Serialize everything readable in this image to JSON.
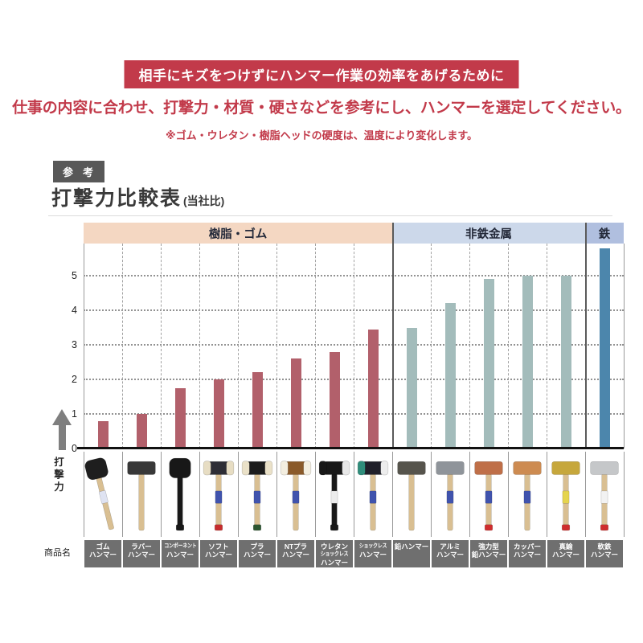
{
  "banner": {
    "text": "相手にキズをつけずにハンマー作業の効率をあげるために",
    "bg": "#c23a4a"
  },
  "intro": {
    "main": "仕事の内容に合わせ、打撃力・材質・硬さなどを参考にし、ハンマーを選定してください。",
    "note": "※ゴム・ウレタン・樹脂ヘッドの硬度は、温度により変化します。"
  },
  "reference_badge": "参考",
  "title": {
    "main": "打撃力比較表",
    "suffix": "(当社比)"
  },
  "axis": {
    "y_label": "打撃力",
    "row_label": "商品名",
    "y_ticks": [
      "0",
      "1",
      "2",
      "3",
      "4",
      "5"
    ]
  },
  "chart_data": {
    "type": "bar",
    "title": "打撃力比較表(当社比)",
    "xlabel": "",
    "ylabel": "打撃力",
    "ylim": [
      0,
      5.93
    ],
    "yticks": [
      0,
      1,
      2,
      3,
      4,
      5
    ],
    "grid": true,
    "legend_position": "none",
    "groups": [
      {
        "label": "樹脂・ゴム",
        "band_color": "#f4d7c2",
        "bar_color": "#b2606b",
        "first_col": 0,
        "last_col": 7
      },
      {
        "label": "非鉄金属",
        "band_color": "#ccd8ea",
        "bar_color": "#a3bcbb",
        "first_col": 8,
        "last_col": 12
      },
      {
        "label": "鉄",
        "band_color": "#b0bfdf",
        "bar_color": "#4c86ac",
        "first_col": 13,
        "last_col": 13
      }
    ],
    "categories": [
      "ゴムハンマー",
      "ラバーハンマー",
      "コンポーネントハンマー",
      "ソフトハンマー",
      "プラハンマー",
      "NTプラハンマー",
      "ウレタンショックレスハンマー",
      "ショックレスハンマー",
      "鉛ハンマー",
      "アルミハンマー",
      "強力型鉛ハンマー",
      "カッパーハンマー",
      "真鍮ハンマー",
      "軟鉄ハンマー"
    ],
    "values": [
      0.8,
      1.0,
      1.75,
      2.0,
      2.2,
      2.6,
      2.8,
      3.45,
      3.5,
      4.2,
      4.9,
      5.0,
      5.0,
      5.8
    ]
  },
  "columns": [
    {
      "name_lines": [
        "ゴム",
        "ハンマー"
      ],
      "hammer": {
        "type": "mallet",
        "head": [
          "#1e1e1e",
          "#1e1e1e",
          "#1e1e1e"
        ],
        "handle": "#d9bf92",
        "label": "#dfe3f2",
        "butt": null,
        "tilt": -14
      }
    },
    {
      "name_lines": [
        "ラバー",
        "ハンマー"
      ],
      "hammer": {
        "type": "bar",
        "head": [
          "#8c8c8c",
          "#383838",
          "#383838"
        ],
        "handle": "#d9bf92",
        "label": null,
        "butt": null,
        "tilt": 0
      }
    },
    {
      "name_lines": [
        "コンポーネント",
        "ハンマー"
      ],
      "hammer": {
        "type": "mallet",
        "head": [
          "#181818",
          "#181818",
          "#181818"
        ],
        "handle": "#181818",
        "label": null,
        "butt": "#181818",
        "tilt": 0
      }
    },
    {
      "name_lines": [
        "ソフト",
        "ハンマー"
      ],
      "hammer": {
        "type": "tri",
        "head": [
          "#e7ddc3",
          "#2e2e36",
          "#e7ddc3"
        ],
        "handle": "#d9bf92",
        "label": "#4053ad",
        "butt": "#c62c2c",
        "tilt": 0
      }
    },
    {
      "name_lines": [
        "プラ",
        "ハンマー"
      ],
      "hammer": {
        "type": "tri",
        "head": [
          "#eae1c8",
          "#1c1c1c",
          "#eae1c8"
        ],
        "handle": "#d9bf92",
        "label": "#4053ad",
        "butt": "#2c5530",
        "tilt": 0
      }
    },
    {
      "name_lines": [
        "NTプラ",
        "ハンマー"
      ],
      "hammer": {
        "type": "tri",
        "head": [
          "#f3eee0",
          "#8a5a2a",
          "#f3eee0"
        ],
        "handle": "#d9bf92",
        "label": "#4053ad",
        "butt": null,
        "tilt": 0
      }
    },
    {
      "name_lines": [
        "ウレタン",
        "ショックレス",
        "ハンマー"
      ],
      "hammer": {
        "type": "tri",
        "head": [
          "#181818",
          "#181818",
          "#e8e8e8"
        ],
        "handle": "#181818",
        "label": "#ececec",
        "butt": "#181818",
        "tilt": 0
      }
    },
    {
      "name_lines": [
        "ショックレス",
        "ハンマー"
      ],
      "hammer": {
        "type": "tri",
        "head": [
          "#2f8d7b",
          "#20202a",
          "#ededed"
        ],
        "handle": "#d9bf92",
        "label": "#4053ad",
        "butt": null,
        "tilt": 0
      }
    },
    {
      "name_lines": [
        "鉛ハンマー"
      ],
      "hammer": {
        "type": "bar",
        "head": [
          "#56544c",
          "#56544c",
          "#56544c"
        ],
        "handle": "#d9bf92",
        "label": null,
        "butt": null,
        "tilt": 0
      }
    },
    {
      "name_lines": [
        "アルミ",
        "ハンマー"
      ],
      "hammer": {
        "type": "bar",
        "head": [
          "#8f949a",
          "#8f949a",
          "#8f949a"
        ],
        "handle": "#d9bf92",
        "label": "#4053ad",
        "butt": null,
        "tilt": 0
      }
    },
    {
      "name_lines": [
        "強力型",
        "鉛ハンマー"
      ],
      "hammer": {
        "type": "bar",
        "head": [
          "#bf6f48",
          "#bf6f48",
          "#bf6f48"
        ],
        "handle": "#d9bf92",
        "label": "#4053ad",
        "butt": "#cf2d2d",
        "tilt": 0
      }
    },
    {
      "name_lines": [
        "カッパー",
        "ハンマー"
      ],
      "hammer": {
        "type": "bar",
        "head": [
          "#cd8b51",
          "#cd8b51",
          "#cd8b51"
        ],
        "handle": "#d9bf92",
        "label": "#4053ad",
        "butt": null,
        "tilt": 0
      }
    },
    {
      "name_lines": [
        "真鍮",
        "ハンマー"
      ],
      "hammer": {
        "type": "bar",
        "head": [
          "#c6a73c",
          "#c6a73c",
          "#c6a73c"
        ],
        "handle": "#d9bf92",
        "label": "#e5d44e",
        "butt": "#cf2d2d",
        "tilt": 0
      }
    },
    {
      "name_lines": [
        "軟鉄",
        "ハンマー"
      ],
      "hammer": {
        "type": "bar",
        "head": [
          "#c5c7c9",
          "#c5c7c9",
          "#c5c7c9"
        ],
        "handle": "#d9bf92",
        "label": "#f2f2f2",
        "butt": "#cf2d2d",
        "tilt": 0
      }
    }
  ]
}
